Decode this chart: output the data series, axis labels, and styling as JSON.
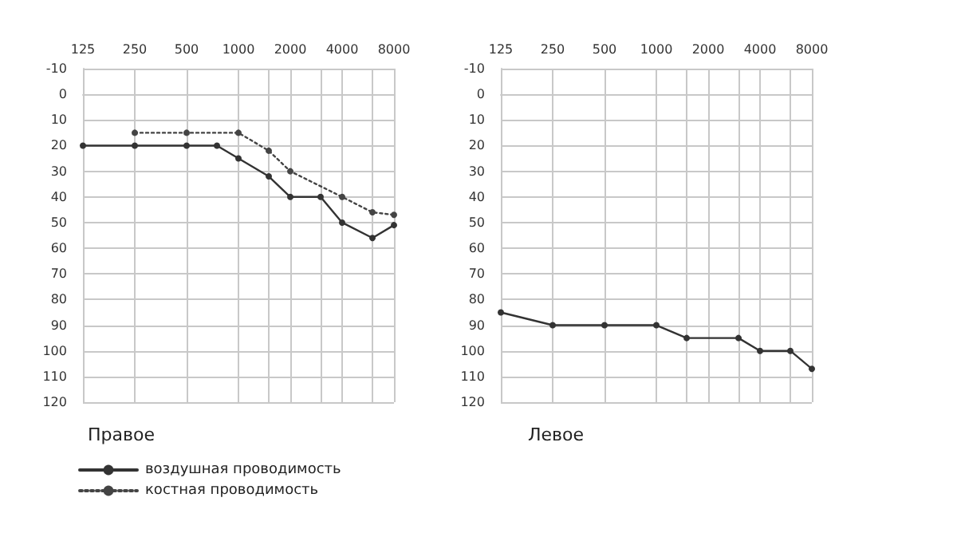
{
  "chart_data": [
    {
      "type": "line",
      "title": "Правое",
      "log": "x",
      "xlim": [
        125,
        8000
      ],
      "xticks": [
        125,
        250,
        500,
        1000,
        {
          "value": 1500,
          "label": null
        },
        2000,
        {
          "value": 3000,
          "label": null
        },
        4000,
        {
          "value": 6000,
          "label": null
        },
        8000
      ],
      "ylim": [
        120,
        -10
      ],
      "yticks": [
        -10,
        0,
        10,
        20,
        30,
        40,
        50,
        60,
        70,
        80,
        90,
        100,
        110,
        120
      ],
      "grid": true,
      "marker": "circle",
      "legend": "bottom left",
      "series": [
        {
          "name": "воздушная проводимость",
          "color": "#333333",
          "line_style": "solid",
          "x": [
            125,
            250,
            500,
            750,
            1000,
            1500,
            2000,
            3000,
            4000,
            6000,
            8000
          ],
          "values": [
            20,
            20,
            20,
            20,
            25,
            32,
            40,
            40,
            50,
            56,
            51
          ]
        },
        {
          "name": "костная проводимость",
          "color": "#444444",
          "line_style": "dotted",
          "x": [
            250,
            500,
            1000,
            1500,
            2000,
            4000,
            6000,
            8000
          ],
          "values": [
            15,
            15,
            15,
            22,
            30,
            40,
            46,
            47
          ]
        }
      ]
    },
    {
      "type": "line",
      "title": "Левое",
      "log": "x",
      "xlim": [
        125,
        8000
      ],
      "xticks": [
        125,
        250,
        500,
        1000,
        {
          "value": 1500,
          "label": null
        },
        2000,
        {
          "value": 3000,
          "label": null
        },
        4000,
        {
          "value": 6000,
          "label": null
        },
        8000
      ],
      "ylim": [
        120,
        -10
      ],
      "yticks": [
        -10,
        0,
        10,
        20,
        30,
        40,
        50,
        60,
        70,
        80,
        90,
        100,
        110,
        120
      ],
      "grid": true,
      "marker": "circle",
      "series": [
        {
          "color": "#333333",
          "line_style": "solid",
          "x": [
            125,
            250,
            500,
            1000,
            1500,
            3000,
            4000,
            6000,
            8000
          ],
          "values": [
            85,
            90,
            90,
            90,
            95,
            95,
            100,
            100,
            107
          ]
        }
      ]
    }
  ]
}
